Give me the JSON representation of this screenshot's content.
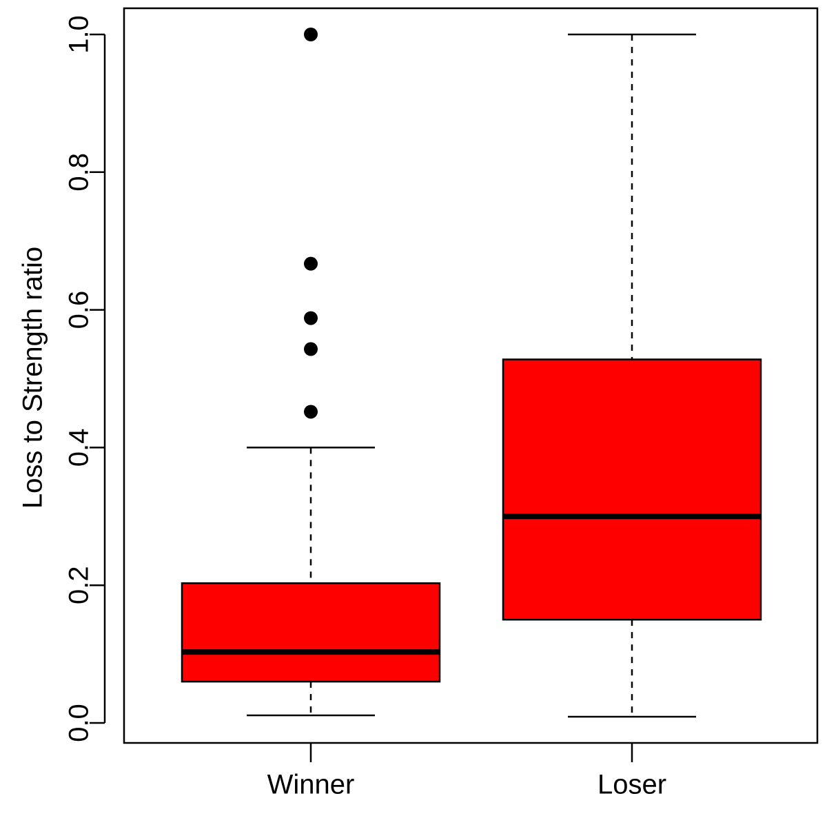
{
  "chart_data": {
    "type": "boxplot",
    "title": "",
    "xlabel": "",
    "ylabel": "Loss to Strength ratio",
    "ylim": [
      0.0,
      1.0
    ],
    "yticks": [
      "0.0",
      "0.2",
      "0.4",
      "0.6",
      "0.8",
      "1.0"
    ],
    "fill_color": "#ff0000",
    "grid": false,
    "categories": [
      "Winner",
      "Loser"
    ],
    "boxes": [
      {
        "name": "Winner",
        "whisker_low": 0.011,
        "q1": 0.06,
        "median": 0.103,
        "q3": 0.203,
        "whisker_high": 0.4,
        "outliers": [
          1.0,
          0.667,
          0.588,
          0.543,
          0.452
        ]
      },
      {
        "name": "Loser",
        "whisker_low": 0.009,
        "q1": 0.15,
        "median": 0.3,
        "q3": 0.528,
        "whisker_high": 1.0,
        "outliers": []
      }
    ]
  }
}
